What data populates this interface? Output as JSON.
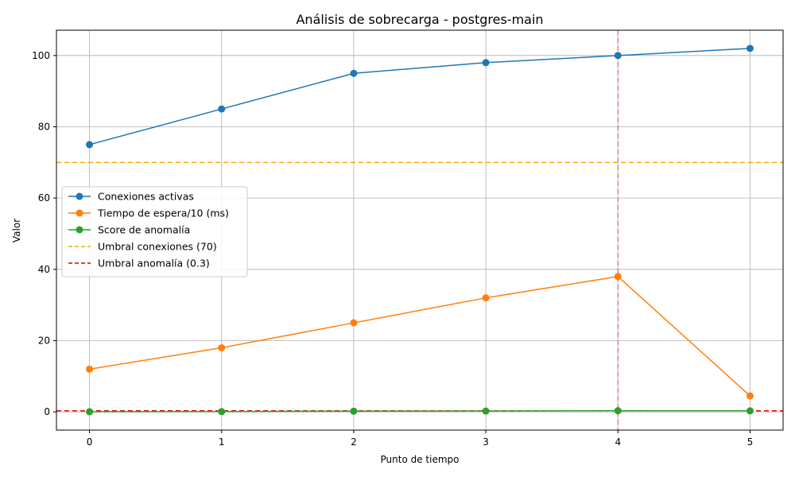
{
  "chart_data": {
    "type": "line",
    "title": "Análisis de sobrecarga - postgres-main",
    "xlabel": "Punto de tiempo",
    "ylabel": "Valor",
    "x": [
      0,
      1,
      2,
      3,
      4,
      5
    ],
    "xlim": [
      -0.25,
      5.25
    ],
    "ylim": [
      -5.1,
      107.1
    ],
    "xticks": [
      0,
      1,
      2,
      3,
      4,
      5
    ],
    "yticks": [
      0,
      20,
      40,
      60,
      80,
      100
    ],
    "grid": true,
    "legend_position": "center-left",
    "series": [
      {
        "name": "Conexiones activas",
        "values": [
          75,
          85,
          95,
          98,
          100,
          102
        ],
        "color": "#1f77b4",
        "style": "line-marker"
      },
      {
        "name": "Tiempo de espera/10 (ms)",
        "values": [
          12,
          18,
          25,
          32,
          38,
          4.5
        ],
        "color": "#ff7f0e",
        "style": "line-marker"
      },
      {
        "name": "Score de anomalía",
        "values": [
          0.05,
          0.1,
          0.2,
          0.25,
          0.35,
          0.3
        ],
        "color": "#2ca02c",
        "style": "line-marker"
      }
    ],
    "reference_lines": [
      {
        "name": "Umbral conexiones (70)",
        "orientation": "horizontal",
        "value": 70,
        "color": "#ffa500",
        "dash": "dashed",
        "in_legend": true
      },
      {
        "name": "Umbral anomalía (0.3)",
        "orientation": "horizontal",
        "value": 0.3,
        "color": "#e00000",
        "dash": "dashed",
        "in_legend": true
      },
      {
        "orientation": "vertical",
        "value": 4,
        "color": "#e06060",
        "dash": "dashed",
        "in_legend": false
      }
    ]
  }
}
